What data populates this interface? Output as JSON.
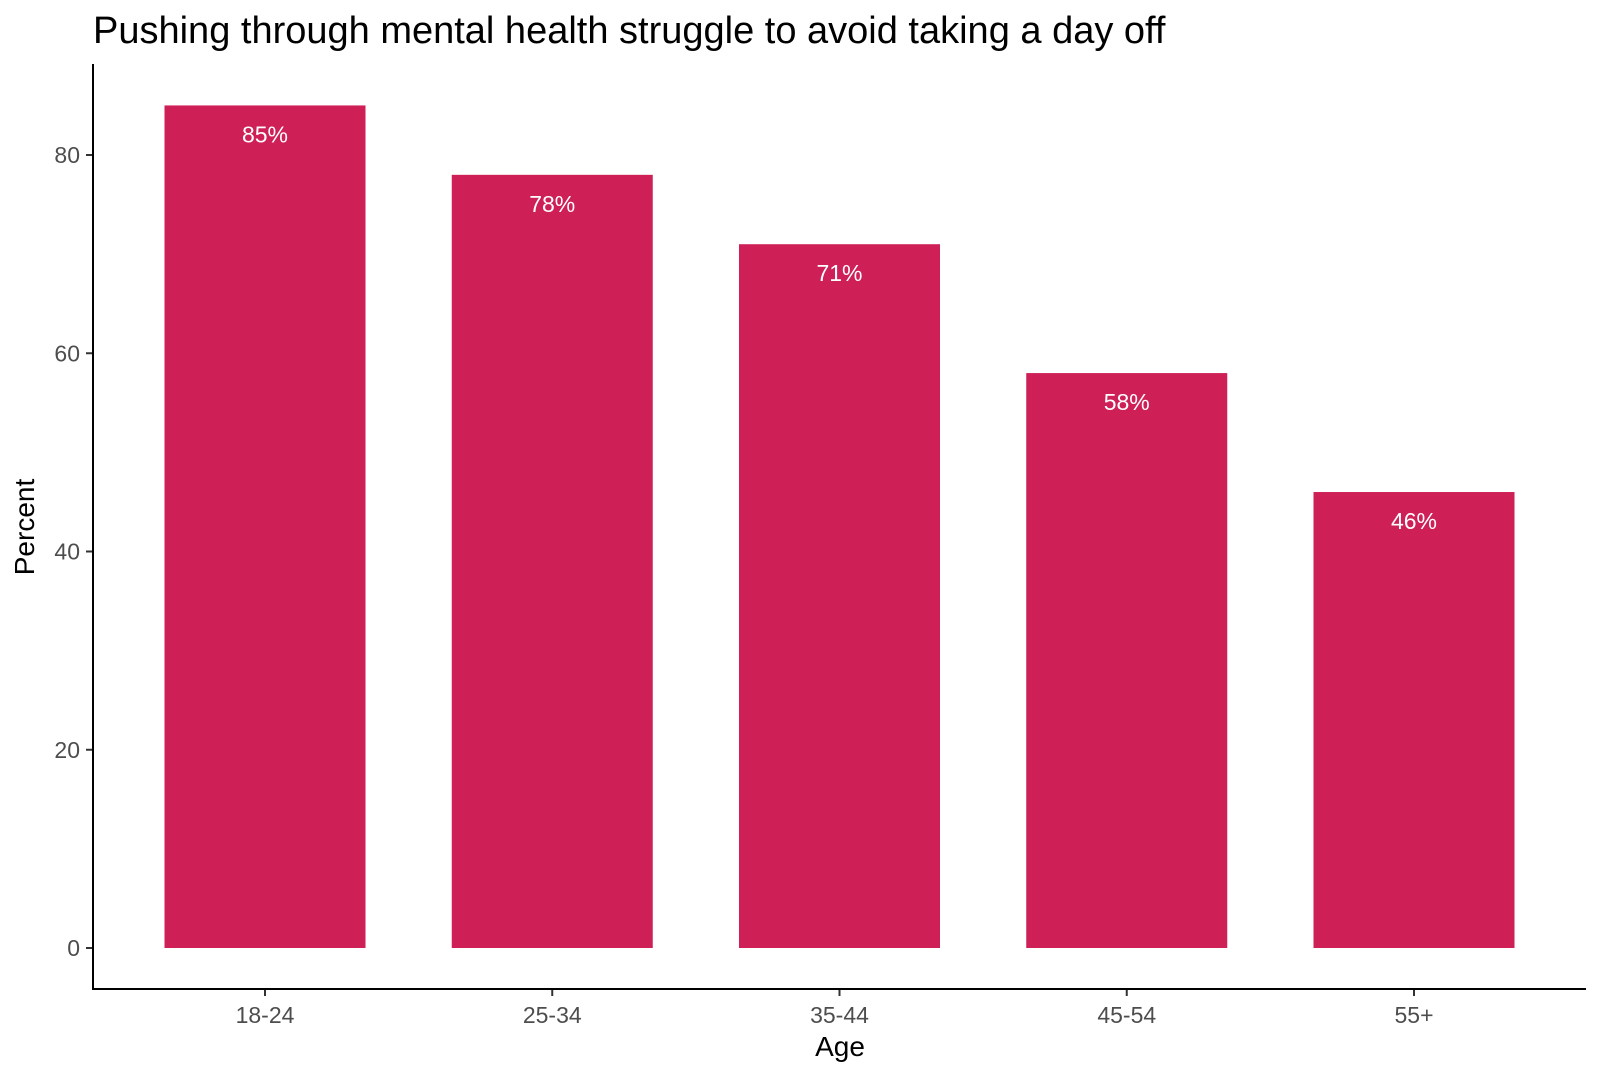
{
  "chart_data": {
    "type": "bar",
    "title": "Pushing through mental health struggle to avoid taking a day off",
    "xlabel": "Age",
    "ylabel": "Percent",
    "categories": [
      "18-24",
      "25-34",
      "35-44",
      "45-54",
      "55+"
    ],
    "values": [
      85,
      78,
      71,
      58,
      46
    ],
    "data_labels": [
      "85%",
      "78%",
      "71%",
      "58%",
      "46%"
    ],
    "yticks": [
      0,
      20,
      40,
      60,
      80
    ],
    "ytick_labels": [
      "0",
      "20",
      "40",
      "60",
      "80"
    ],
    "ylim": [
      -4.2,
      89.3
    ],
    "grid": false,
    "bar_color": "#CE1F56"
  }
}
